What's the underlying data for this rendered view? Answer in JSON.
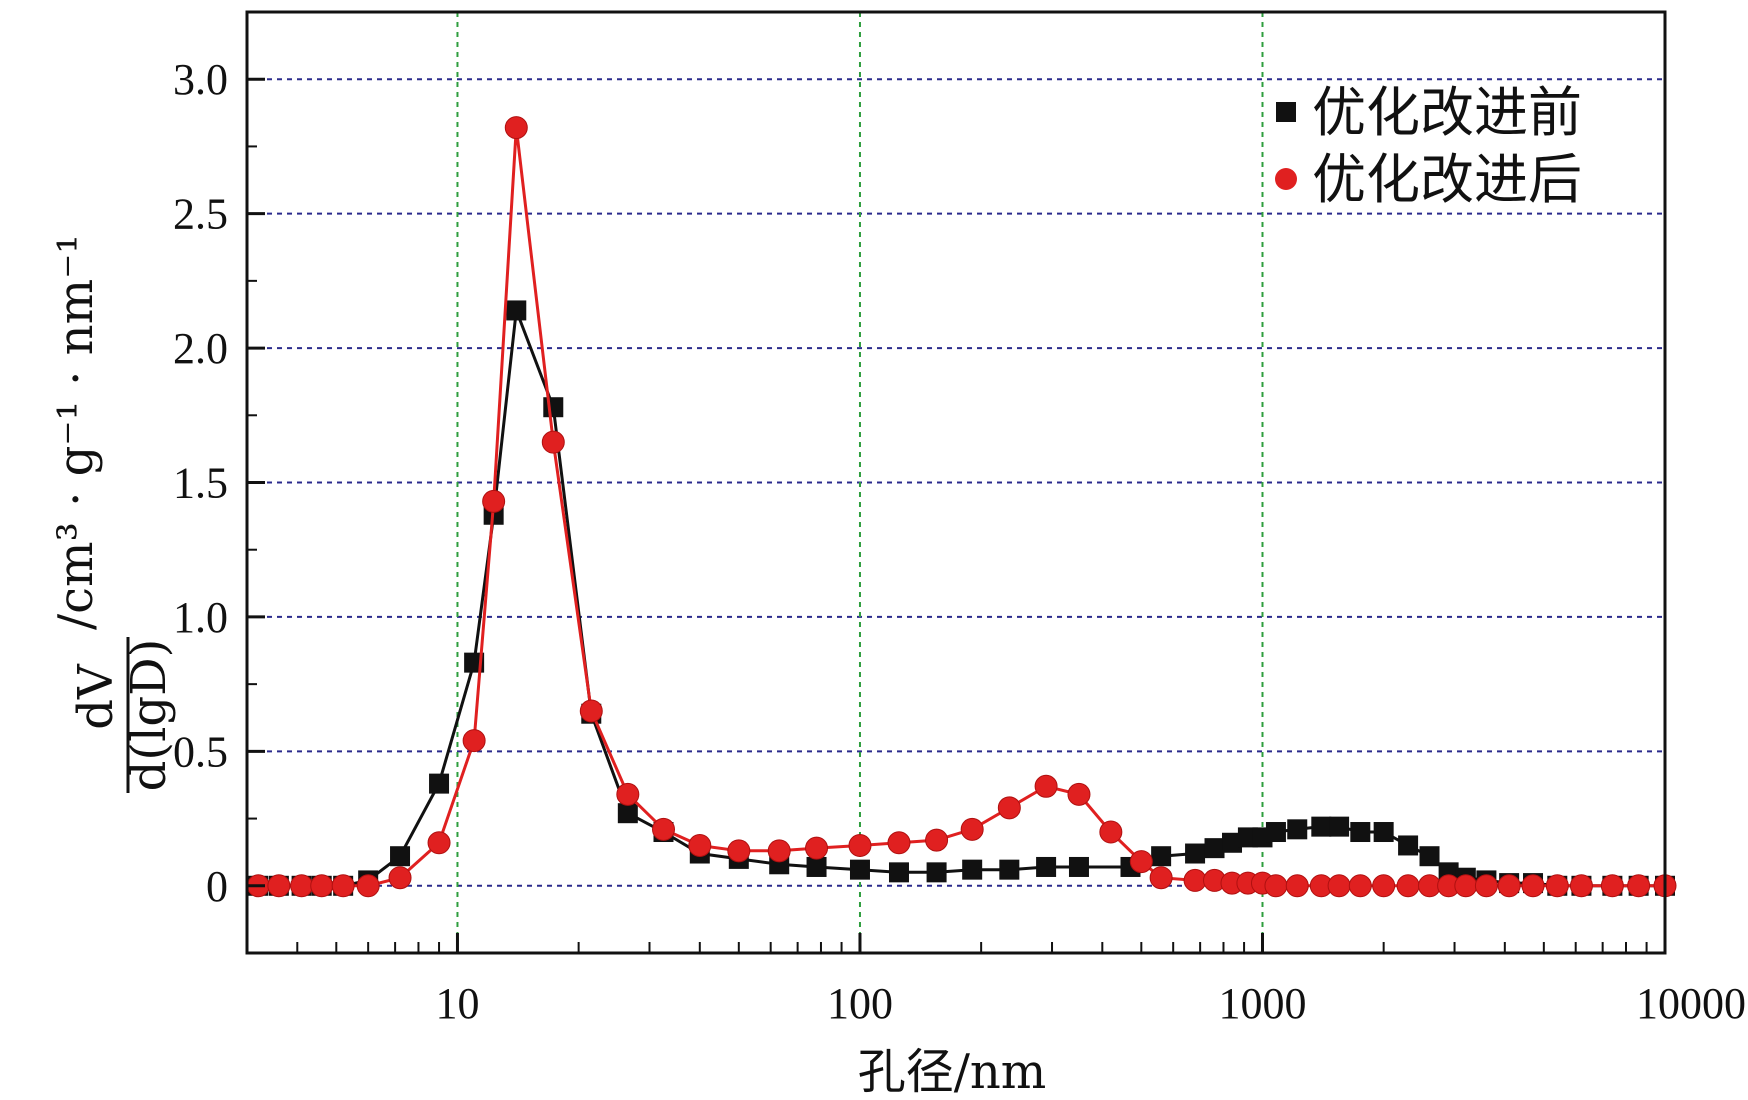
{
  "chart_data": {
    "type": "line",
    "xscale": "log",
    "xlim": [
      3,
      10000
    ],
    "ylim": [
      -0.25,
      3.25
    ],
    "x_ticks": [
      10,
      100,
      1000,
      10000
    ],
    "x_tick_labels": [
      "10",
      "100",
      "1000",
      "10000"
    ],
    "y_ticks": [
      0,
      0.5,
      1.0,
      1.5,
      2.0,
      2.5,
      3.0
    ],
    "y_tick_labels": [
      "0",
      "0.5",
      "1.0",
      "1.5",
      "2.0",
      "2.5",
      "3.0"
    ],
    "xlabel": "孔径/nm",
    "ylabel": {
      "numerator": "dV",
      "denominator": "d(lgD)",
      "units": "/cm³ · g⁻¹ · nm⁻¹"
    },
    "grid": {
      "horizontal": true,
      "vertical": true,
      "h_color": "#2b2b8c",
      "v_color": "#2e9e3e"
    },
    "legend_position": "top-right",
    "series": [
      {
        "name": "优化改进前",
        "color": "#111111",
        "marker": "square",
        "x": [
          3.2,
          3.6,
          4.1,
          4.6,
          5.2,
          6.0,
          7.2,
          9.0,
          11.0,
          12.3,
          14.0,
          17.3,
          21.5,
          26.5,
          32.5,
          40,
          50,
          63,
          78,
          100,
          125,
          155,
          190,
          235,
          290,
          350,
          470,
          560,
          680,
          760,
          840,
          920,
          1000,
          1080,
          1220,
          1400,
          1550,
          1750,
          2000,
          2300,
          2600,
          2900,
          3200,
          3600,
          4100,
          4700,
          5400,
          6200,
          7400,
          8600,
          10000
        ],
        "y": [
          0,
          0,
          0,
          0,
          0,
          0.02,
          0.11,
          0.38,
          0.83,
          1.38,
          2.14,
          1.78,
          0.64,
          0.27,
          0.2,
          0.12,
          0.1,
          0.08,
          0.07,
          0.06,
          0.05,
          0.05,
          0.06,
          0.06,
          0.07,
          0.07,
          0.07,
          0.11,
          0.12,
          0.14,
          0.16,
          0.18,
          0.18,
          0.2,
          0.21,
          0.22,
          0.22,
          0.2,
          0.2,
          0.15,
          0.11,
          0.05,
          0.03,
          0.02,
          0.01,
          0.01,
          0,
          0,
          0,
          0,
          0
        ]
      },
      {
        "name": "优化改进后",
        "color": "#e02020",
        "marker": "circle",
        "x": [
          3.2,
          3.6,
          4.1,
          4.6,
          5.2,
          6.0,
          7.2,
          9.0,
          11.0,
          12.3,
          14.0,
          17.3,
          21.5,
          26.5,
          32.5,
          40,
          50,
          63,
          78,
          100,
          125,
          155,
          190,
          235,
          290,
          350,
          420,
          500,
          560,
          680,
          760,
          840,
          920,
          1000,
          1080,
          1220,
          1400,
          1550,
          1750,
          2000,
          2300,
          2600,
          2900,
          3200,
          3600,
          4100,
          4700,
          5400,
          6200,
          7400,
          8600,
          10000
        ],
        "y": [
          0,
          0,
          0,
          0,
          0,
          0,
          0.03,
          0.16,
          0.54,
          1.43,
          2.82,
          1.65,
          0.65,
          0.34,
          0.21,
          0.15,
          0.13,
          0.13,
          0.14,
          0.15,
          0.16,
          0.17,
          0.21,
          0.29,
          0.37,
          0.34,
          0.2,
          0.09,
          0.03,
          0.02,
          0.02,
          0.01,
          0.01,
          0.01,
          0,
          0,
          0,
          0,
          0,
          0,
          0,
          0,
          0,
          0,
          0,
          0,
          0,
          0,
          0,
          0,
          0,
          0
        ]
      }
    ]
  }
}
